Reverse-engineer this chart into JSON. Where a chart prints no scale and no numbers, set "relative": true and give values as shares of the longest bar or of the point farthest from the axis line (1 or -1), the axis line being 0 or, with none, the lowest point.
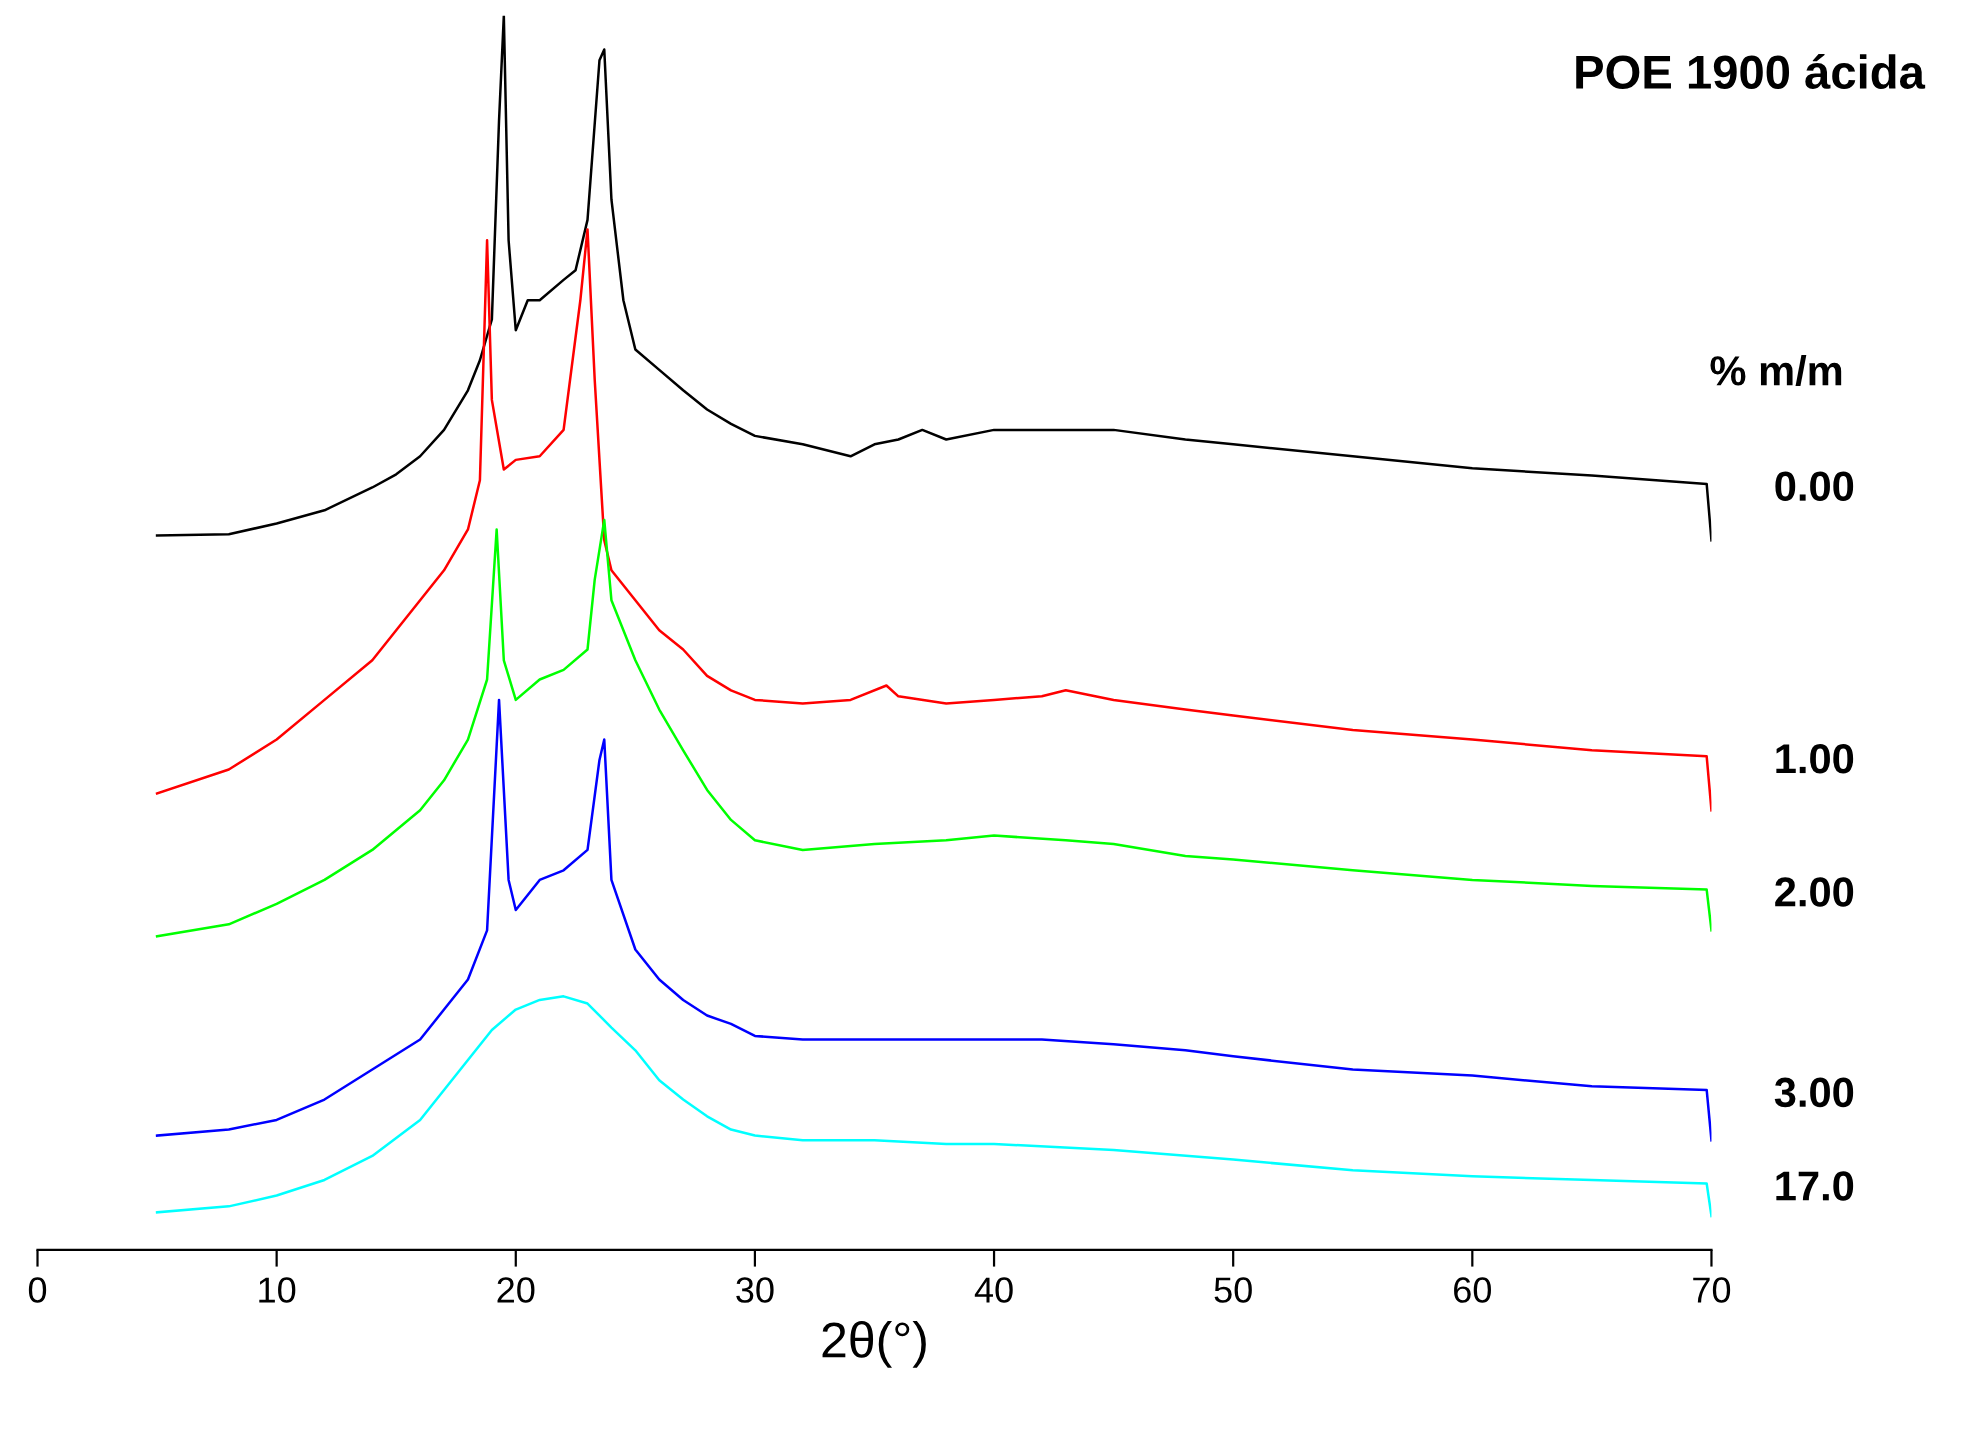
{
  "chart_data": {
    "type": "line",
    "title": "POE 1900 ácida",
    "xlabel": "2θ(°)",
    "legend_title": "% m/m",
    "relative": true,
    "xlim": [
      0,
      70
    ],
    "xticks": [
      0,
      10,
      20,
      30,
      40,
      50,
      60,
      70
    ],
    "grid": false,
    "legend": false,
    "marker": "none",
    "line_style": "solid",
    "series": [
      {
        "name": "0.00",
        "color": "#000000",
        "x": [
          5,
          8,
          10,
          12,
          14,
          15,
          16,
          17,
          18,
          18.5,
          19,
          19.3,
          19.5,
          19.7,
          20,
          20.5,
          21,
          22,
          22.5,
          23,
          23.5,
          23.7,
          24,
          24.5,
          25,
          26,
          27,
          28,
          29,
          30,
          32,
          34,
          35,
          36,
          37,
          38,
          40,
          42,
          45,
          48,
          50,
          55,
          60,
          65,
          69.8,
          70
        ],
        "values": [
          0.567,
          0.568,
          0.577,
          0.588,
          0.607,
          0.618,
          0.633,
          0.655,
          0.688,
          0.713,
          0.747,
          0.913,
          1.0,
          0.813,
          0.738,
          0.763,
          0.763,
          0.78,
          0.788,
          0.83,
          0.963,
          0.972,
          0.847,
          0.763,
          0.722,
          0.705,
          0.688,
          0.672,
          0.66,
          0.65,
          0.643,
          0.633,
          0.643,
          0.647,
          0.655,
          0.647,
          0.655,
          0.655,
          0.655,
          0.647,
          0.643,
          0.633,
          0.623,
          0.617,
          0.61,
          0.563
        ]
      },
      {
        "name": "1.00",
        "color": "#ff0000",
        "x": [
          5,
          8,
          10,
          12,
          14,
          15,
          16,
          17,
          18,
          18.5,
          18.8,
          19,
          19.5,
          20,
          21,
          22,
          22.7,
          23,
          23.3,
          23.7,
          24,
          25,
          26,
          27,
          28,
          29,
          30,
          32,
          34,
          35.5,
          36,
          38,
          40,
          42,
          43,
          45,
          48,
          50,
          55,
          60,
          65,
          69.8,
          70
        ],
        "values": [
          0.352,
          0.372,
          0.397,
          0.43,
          0.463,
          0.488,
          0.513,
          0.538,
          0.572,
          0.613,
          0.813,
          0.68,
          0.622,
          0.63,
          0.633,
          0.655,
          0.763,
          0.822,
          0.697,
          0.563,
          0.538,
          0.513,
          0.488,
          0.472,
          0.45,
          0.438,
          0.43,
          0.427,
          0.43,
          0.442,
          0.433,
          0.427,
          0.43,
          0.433,
          0.438,
          0.43,
          0.422,
          0.417,
          0.405,
          0.397,
          0.388,
          0.383,
          0.338
        ]
      },
      {
        "name": "2.00",
        "color": "#00ff00",
        "x": [
          5,
          8,
          10,
          12,
          14,
          16,
          17,
          18,
          18.8,
          19.2,
          19.5,
          20,
          21,
          22,
          23,
          23.3,
          23.7,
          24,
          25,
          26,
          27,
          28,
          29,
          30,
          32,
          35,
          38,
          40,
          43,
          45,
          48,
          50,
          55,
          60,
          65,
          69.8,
          70
        ],
        "values": [
          0.233,
          0.243,
          0.26,
          0.28,
          0.305,
          0.338,
          0.363,
          0.397,
          0.447,
          0.572,
          0.463,
          0.43,
          0.447,
          0.455,
          0.472,
          0.53,
          0.58,
          0.513,
          0.463,
          0.422,
          0.388,
          0.355,
          0.33,
          0.313,
          0.305,
          0.31,
          0.313,
          0.317,
          0.313,
          0.31,
          0.3,
          0.297,
          0.288,
          0.28,
          0.275,
          0.272,
          0.238
        ]
      },
      {
        "name": "3.00",
        "color": "#0000ff",
        "x": [
          5,
          8,
          10,
          12,
          14,
          16,
          17,
          18,
          18.8,
          19.3,
          19.7,
          20,
          21,
          22,
          23,
          23.5,
          23.7,
          24,
          25,
          26,
          27,
          28,
          29,
          30,
          32,
          35,
          38,
          40,
          42,
          45,
          48,
          50,
          55,
          60,
          65,
          69.8,
          70
        ],
        "values": [
          0.067,
          0.072,
          0.08,
          0.097,
          0.122,
          0.147,
          0.172,
          0.197,
          0.238,
          0.43,
          0.28,
          0.255,
          0.28,
          0.288,
          0.305,
          0.38,
          0.397,
          0.28,
          0.222,
          0.197,
          0.18,
          0.167,
          0.16,
          0.15,
          0.147,
          0.147,
          0.147,
          0.147,
          0.147,
          0.143,
          0.138,
          0.133,
          0.122,
          0.117,
          0.108,
          0.105,
          0.063
        ]
      },
      {
        "name": "17.0",
        "color": "#00ffff",
        "x": [
          5,
          8,
          10,
          12,
          14,
          16,
          17,
          18,
          19,
          20,
          21,
          22,
          23,
          24,
          25,
          26,
          27,
          28,
          29,
          30,
          32,
          35,
          38,
          40,
          45,
          50,
          55,
          60,
          65,
          69.8,
          70
        ],
        "values": [
          0.003,
          0.008,
          0.017,
          0.03,
          0.05,
          0.08,
          0.105,
          0.13,
          0.155,
          0.172,
          0.18,
          0.183,
          0.177,
          0.157,
          0.138,
          0.113,
          0.097,
          0.083,
          0.072,
          0.067,
          0.063,
          0.063,
          0.06,
          0.06,
          0.055,
          0.047,
          0.038,
          0.033,
          0.03,
          0.027,
          0.0
        ]
      }
    ]
  }
}
